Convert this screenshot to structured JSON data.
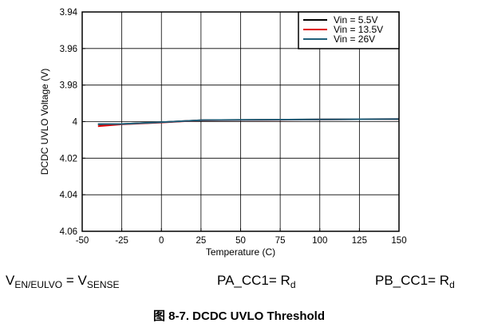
{
  "chart_data": {
    "type": "line",
    "title": "",
    "xlabel": "Temperature (C)",
    "ylabel": "DCDC UVLO Voltage (V)",
    "xlim": [
      -50,
      150
    ],
    "ylim": [
      3.94,
      4.06
    ],
    "y_reversed": true,
    "grid": true,
    "legend_position": "top-right",
    "x_ticks": [
      "-50",
      "-25",
      "0",
      "25",
      "50",
      "75",
      "100",
      "125",
      "150"
    ],
    "y_ticks": [
      "3.94",
      "3.96",
      "3.98",
      "4",
      "4.02",
      "4.04",
      "4.06"
    ],
    "series": [
      {
        "name": "Vin = 5.5V",
        "color": "#000000",
        "x": [
          -40,
          -25,
          0,
          25,
          125,
          150
        ],
        "y": [
          4.0015,
          4.0013,
          4.0003,
          3.9992,
          3.9987,
          3.9987
        ]
      },
      {
        "name": "Vin = 13.5V",
        "color": "#e00000",
        "x": [
          -40,
          -25,
          0,
          25,
          125,
          150
        ],
        "y": [
          4.0025,
          4.0015,
          4.0005,
          3.9993,
          3.9987,
          3.9986
        ]
      },
      {
        "name": "Vin = 26V",
        "color": "#1f5f7a",
        "x": [
          -40,
          -25,
          0,
          25,
          125,
          150
        ],
        "y": [
          4.0013,
          4.0013,
          4.0003,
          3.9992,
          3.9987,
          3.9986
        ]
      }
    ]
  },
  "conditions": {
    "cond1_main": "V",
    "cond1_sub": "EN/EULVO",
    "cond1_eq": " = V",
    "cond1_sub2": "SENSE",
    "cond2_main": "PA_CC1= R",
    "cond2_sub": "d",
    "cond3_main": "PB_CC1= R",
    "cond3_sub": "d"
  },
  "caption": "图 8-7. DCDC UVLO Threshold"
}
